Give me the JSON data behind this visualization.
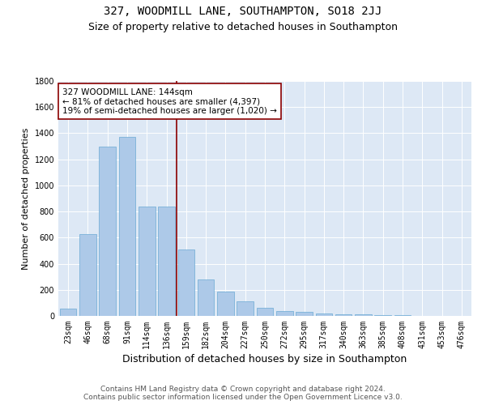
{
  "title_line1": "327, WOODMILL LANE, SOUTHAMPTON, SO18 2JJ",
  "title_line2": "Size of property relative to detached houses in Southampton",
  "xlabel": "Distribution of detached houses by size in Southampton",
  "ylabel": "Number of detached properties",
  "categories": [
    "23sqm",
    "46sqm",
    "68sqm",
    "91sqm",
    "114sqm",
    "136sqm",
    "159sqm",
    "182sqm",
    "204sqm",
    "227sqm",
    "250sqm",
    "272sqm",
    "295sqm",
    "317sqm",
    "340sqm",
    "363sqm",
    "385sqm",
    "408sqm",
    "431sqm",
    "453sqm",
    "476sqm"
  ],
  "values": [
    55,
    630,
    1300,
    1370,
    835,
    835,
    510,
    280,
    185,
    110,
    65,
    35,
    30,
    20,
    15,
    10,
    8,
    5,
    3,
    2,
    2
  ],
  "bar_color": "#adc9e8",
  "bar_edge_color": "#6aaad4",
  "vline_x": 5.5,
  "vline_color": "#8b0000",
  "annotation_text": "327 WOODMILL LANE: 144sqm\n← 81% of detached houses are smaller (4,397)\n19% of semi-detached houses are larger (1,020) →",
  "annotation_box_color": "#ffffff",
  "annotation_box_edge": "#8b0000",
  "ylim": [
    0,
    1800
  ],
  "yticks": [
    0,
    200,
    400,
    600,
    800,
    1000,
    1200,
    1400,
    1600,
    1800
  ],
  "bg_color": "#dde8f5",
  "footer": "Contains HM Land Registry data © Crown copyright and database right 2024.\nContains public sector information licensed under the Open Government Licence v3.0.",
  "title_fontsize": 10,
  "subtitle_fontsize": 9,
  "xlabel_fontsize": 9,
  "ylabel_fontsize": 8,
  "tick_fontsize": 7,
  "footer_fontsize": 6.5,
  "annot_fontsize": 7.5
}
